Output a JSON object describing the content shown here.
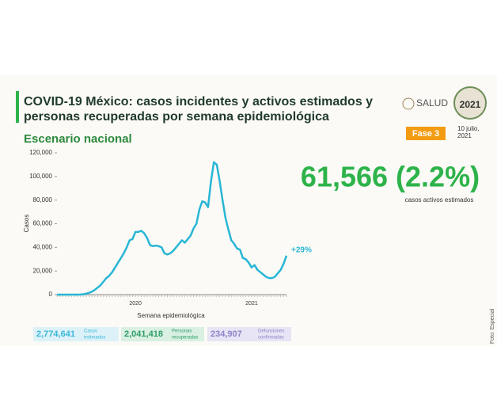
{
  "header": {
    "title_lines": [
      "COVID-19 México: casos incidentes y activos estimados y",
      "personas recuperadas por semana epidemiológica"
    ],
    "subtitle": "Escenario nacional",
    "phase": "Fase 3",
    "date_lines": [
      "10 julio,",
      "2021"
    ],
    "logo_text": "SALUD",
    "logo_year": "2021"
  },
  "highlight": {
    "value": "61,566 (2.2%)",
    "caption": "casos activos estimados"
  },
  "summary": [
    {
      "value": "2,774,641",
      "label_lines": [
        "Casos",
        "estimados"
      ],
      "color": "#3cb8d8",
      "bg": "#dcf2f8"
    },
    {
      "value": "2,041,418",
      "label_lines": [
        "Personas",
        "recuperadas"
      ],
      "color": "#2e9e6a",
      "bg": "#d9f0e2"
    },
    {
      "value": "234,907",
      "label_lines": [
        "Defunciones",
        "confirmadas"
      ],
      "color": "#8d85c8",
      "bg": "#e7e4f5"
    }
  ],
  "credit": "Foto: Especial",
  "chart_data": {
    "type": "line",
    "ylabel": "Casos",
    "xlabel": "Semana epidemiológica",
    "annotation": "+29%",
    "categories": [
      null,
      null,
      null,
      null,
      null,
      null,
      null,
      null,
      null,
      null,
      null,
      null,
      null,
      null,
      null,
      null,
      null,
      null,
      null,
      null,
      null,
      null,
      null,
      null,
      null,
      null,
      null,
      "2020",
      null,
      null,
      null,
      null,
      null,
      null,
      null,
      null,
      null,
      null,
      null,
      null,
      null,
      null,
      null,
      null,
      null,
      null,
      null,
      null,
      null,
      null,
      null,
      null,
      null,
      null,
      null,
      null,
      null,
      null,
      null,
      null,
      null,
      null,
      null,
      null,
      null,
      null,
      null,
      "2021",
      null,
      null,
      null,
      null,
      null,
      null,
      null,
      null,
      null,
      null,
      null,
      null
    ],
    "series": [
      {
        "name": "Casos",
        "color": "#29b6d6",
        "values": [
          0,
          0,
          0,
          0,
          0,
          0,
          0,
          0,
          100,
          300,
          800,
          1500,
          2500,
          4000,
          6000,
          8000,
          11000,
          14000,
          16000,
          19000,
          23000,
          27000,
          31000,
          35000,
          40000,
          46000,
          47000,
          53000,
          53000,
          54000,
          52000,
          48000,
          42000,
          41000,
          41500,
          41000,
          40000,
          35000,
          34000,
          35000,
          37000,
          40000,
          43000,
          46000,
          44000,
          47000,
          50000,
          56000,
          60000,
          72000,
          79000,
          78000,
          74000,
          96000,
          112000,
          110000,
          96000,
          80000,
          65000,
          55000,
          46000,
          43000,
          39000,
          38000,
          31000,
          30000,
          27000,
          23000,
          25000,
          21000,
          19000,
          17000,
          15000,
          14000,
          14000,
          15000,
          18000,
          21000,
          26000,
          33000
        ]
      }
    ],
    "ylim": [
      0,
      120000
    ],
    "yticks": [
      0,
      {
        "value": 20000,
        "label": "20,000"
      },
      {
        "value": 40000,
        "label": "40,000"
      },
      {
        "value": 60000,
        "label": "60,000"
      },
      {
        "value": 80000,
        "label": "80,000"
      },
      {
        "value": 100000,
        "label": "100,000"
      },
      {
        "value": 120000,
        "label": "120,000"
      }
    ]
  }
}
